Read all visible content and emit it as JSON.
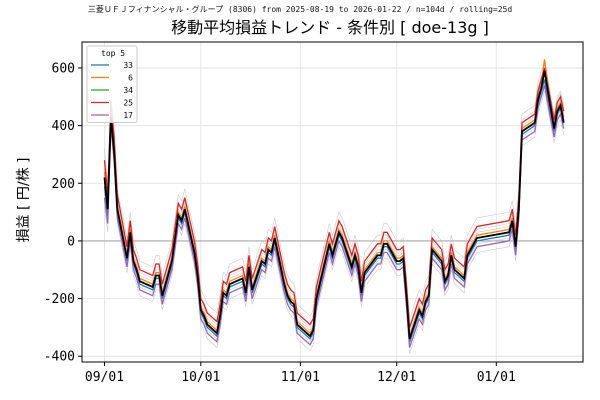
{
  "chart_data": {
    "type": "line",
    "subtitle": "三菱ＵＦＪフィナンシャル・グループ (8306) from 2025-08-19 to 2026-01-22 / n=104d / rolling=25d",
    "title": "移動平均損益トレンド - 条件別 [ doe-13g ]",
    "xlabel": "",
    "ylabel": "損益 [ 円/株 ]",
    "xlim": [
      "2025-08-25",
      "2026-01-28"
    ],
    "ylim": [
      -420,
      690
    ],
    "x_ticks": [
      {
        "date": "2025-09-01",
        "label": "09/01"
      },
      {
        "date": "2025-10-01",
        "label": "10/01"
      },
      {
        "date": "2025-11-01",
        "label": "11/01"
      },
      {
        "date": "2025-12-01",
        "label": "12/01"
      },
      {
        "date": "2026-01-01",
        "label": "01/01"
      }
    ],
    "y_ticks": [
      -400,
      -200,
      0,
      200,
      400,
      600
    ],
    "grid": true,
    "zero_line": true,
    "legend_title": "top 5",
    "legend_position": "upper-left",
    "x": [
      "2025-09-01",
      "2025-09-02",
      "2025-09-03",
      "2025-09-04",
      "2025-09-05",
      "2025-09-08",
      "2025-09-09",
      "2025-09-10",
      "2025-09-11",
      "2025-09-12",
      "2025-09-16",
      "2025-09-17",
      "2025-09-18",
      "2025-09-19",
      "2025-09-22",
      "2025-09-24",
      "2025-09-25",
      "2025-09-26",
      "2025-09-29",
      "2025-09-30",
      "2025-10-01",
      "2025-10-02",
      "2025-10-03",
      "2025-10-06",
      "2025-10-07",
      "2025-10-08",
      "2025-10-09",
      "2025-10-10",
      "2025-10-14",
      "2025-10-15",
      "2025-10-16",
      "2025-10-17",
      "2025-10-20",
      "2025-10-21",
      "2025-10-22",
      "2025-10-23",
      "2025-10-24",
      "2025-10-27",
      "2025-10-28",
      "2025-10-29",
      "2025-10-30",
      "2025-10-31",
      "2025-11-04",
      "2025-11-05",
      "2025-11-06",
      "2025-11-07",
      "2025-11-10",
      "2025-11-11",
      "2025-11-12",
      "2025-11-13",
      "2025-11-14",
      "2025-11-17",
      "2025-11-18",
      "2025-11-19",
      "2025-11-20",
      "2025-11-21",
      "2025-11-25",
      "2025-11-26",
      "2025-11-27",
      "2025-11-28",
      "2025-12-01",
      "2025-12-02",
      "2025-12-03",
      "2025-12-04",
      "2025-12-05",
      "2025-12-08",
      "2025-12-09",
      "2025-12-10",
      "2025-12-11",
      "2025-12-12",
      "2025-12-15",
      "2025-12-16",
      "2025-12-17",
      "2025-12-18",
      "2025-12-19",
      "2025-12-22",
      "2025-12-23",
      "2025-12-24",
      "2025-12-25",
      "2025-12-26",
      "2026-01-05",
      "2026-01-06",
      "2026-01-07",
      "2026-01-08",
      "2026-01-09",
      "2026-01-13",
      "2026-01-14",
      "2026-01-15",
      "2026-01-16",
      "2026-01-19",
      "2026-01-20",
      "2026-01-21",
      "2026-01-22"
    ],
    "series": [
      {
        "name": "33",
        "color": "#1f77b4",
        "values": [
          190,
          80,
          420,
          300,
          100,
          -70,
          20,
          -80,
          -110,
          -150,
          -170,
          -130,
          -130,
          -200,
          -80,
          80,
          60,
          100,
          -50,
          -130,
          -250,
          -270,
          -300,
          -330,
          -270,
          -190,
          -200,
          -160,
          -140,
          -190,
          -100,
          -180,
          -80,
          -90,
          -40,
          -50,
          0,
          -160,
          -200,
          -220,
          -230,
          -300,
          -340,
          -320,
          -210,
          -160,
          -20,
          -60,
          -20,
          20,
          0,
          -100,
          -60,
          -100,
          -190,
          -120,
          -60,
          -60,
          -20,
          -20,
          -80,
          -80,
          -70,
          -200,
          -350,
          -250,
          -270,
          -220,
          -200,
          -40,
          -80,
          -150,
          -130,
          -60,
          -110,
          -140,
          -60,
          -40,
          -20,
          0,
          20,
          60,
          -30,
          100,
          370,
          400,
          480,
          520,
          560,
          380,
          440,
          460,
          410
        ]
      },
      {
        "name": "6",
        "color": "#ff7f0e",
        "values": [
          240,
          120,
          450,
          330,
          120,
          -50,
          40,
          -60,
          -90,
          -130,
          -150,
          -110,
          -110,
          -180,
          -60,
          100,
          80,
          120,
          -30,
          -110,
          -230,
          -250,
          -280,
          -310,
          -250,
          -170,
          -180,
          -140,
          -120,
          -170,
          -80,
          -160,
          -60,
          -70,
          -20,
          -30,
          20,
          -140,
          -180,
          -200,
          -210,
          -280,
          -320,
          -300,
          -190,
          -140,
          0,
          -40,
          0,
          40,
          20,
          -80,
          -40,
          -80,
          -170,
          -100,
          -40,
          -40,
          0,
          0,
          -60,
          -60,
          -50,
          -180,
          -330,
          -230,
          -250,
          -200,
          -180,
          -20,
          -60,
          -130,
          -110,
          -40,
          -90,
          -120,
          -40,
          -20,
          0,
          20,
          40,
          80,
          -10,
          120,
          390,
          420,
          500,
          540,
          630,
          400,
          460,
          480,
          430
        ]
      },
      {
        "name": "34",
        "color": "#2ca02c",
        "values": [
          210,
          100,
          440,
          310,
          110,
          -60,
          30,
          -70,
          -100,
          -140,
          -160,
          -120,
          -120,
          -190,
          -70,
          90,
          70,
          110,
          -40,
          -120,
          -240,
          -260,
          -290,
          -320,
          -260,
          -180,
          -190,
          -150,
          -130,
          -180,
          -90,
          -170,
          -70,
          -80,
          -30,
          -40,
          10,
          -150,
          -190,
          -210,
          -220,
          -290,
          -330,
          -310,
          -200,
          -150,
          -10,
          -50,
          -10,
          30,
          10,
          -90,
          -50,
          -90,
          -180,
          -110,
          -50,
          -50,
          -10,
          -10,
          -70,
          -70,
          -60,
          -190,
          -340,
          -240,
          -260,
          -210,
          -190,
          -30,
          -70,
          -140,
          -120,
          -50,
          -100,
          -130,
          -50,
          -30,
          -10,
          10,
          30,
          70,
          -20,
          110,
          380,
          410,
          490,
          530,
          600,
          390,
          450,
          470,
          420
        ]
      },
      {
        "name": "25",
        "color": "#d62728",
        "values": [
          280,
          160,
          480,
          360,
          160,
          -20,
          70,
          -30,
          -60,
          -100,
          -120,
          -80,
          -80,
          -150,
          -30,
          130,
          110,
          150,
          0,
          -80,
          -200,
          -220,
          -250,
          -280,
          -220,
          -140,
          -150,
          -110,
          -90,
          -140,
          -50,
          -130,
          -30,
          -40,
          10,
          0,
          50,
          -110,
          -150,
          -170,
          -180,
          -250,
          -290,
          -270,
          -160,
          -110,
          30,
          -10,
          30,
          70,
          50,
          -50,
          -10,
          -50,
          -140,
          -70,
          -10,
          -10,
          30,
          30,
          -30,
          -30,
          -20,
          -150,
          -300,
          -200,
          -220,
          -170,
          -150,
          10,
          -30,
          -100,
          -80,
          -10,
          -60,
          -90,
          -10,
          10,
          30,
          50,
          70,
          110,
          20,
          150,
          410,
          440,
          520,
          560,
          600,
          420,
          480,
          500,
          450
        ]
      },
      {
        "name": "17",
        "color": "#9467bd",
        "values": [
          150,
          60,
          400,
          280,
          80,
          -90,
          0,
          -100,
          -130,
          -170,
          -190,
          -150,
          -150,
          -220,
          -100,
          60,
          40,
          80,
          -70,
          -150,
          -270,
          -290,
          -320,
          -350,
          -290,
          -210,
          -220,
          -180,
          -160,
          -210,
          -120,
          -200,
          -100,
          -110,
          -60,
          -70,
          -20,
          -180,
          -220,
          -240,
          -250,
          -320,
          -360,
          -340,
          -230,
          -180,
          -40,
          -80,
          -40,
          0,
          -20,
          -120,
          -80,
          -120,
          -210,
          -140,
          -80,
          -80,
          -40,
          -40,
          -100,
          -100,
          -90,
          -220,
          -370,
          -270,
          -290,
          -240,
          -220,
          -60,
          -100,
          -170,
          -150,
          -80,
          -130,
          -160,
          -80,
          -60,
          -40,
          -20,
          0,
          40,
          -50,
          80,
          350,
          380,
          460,
          500,
          540,
          360,
          420,
          440,
          390
        ]
      }
    ],
    "background_series": [
      {
        "color": "#bbbbbb",
        "values": [
          250,
          140,
          430,
          320,
          140,
          -40,
          50,
          -50,
          -80,
          -120,
          -140,
          -100,
          -100,
          -170,
          -50,
          110,
          90,
          130,
          -20,
          -100,
          -220,
          -240,
          -270,
          -300,
          -240,
          -160,
          -170,
          -130,
          -110,
          -160,
          -70,
          -150,
          -50,
          -60,
          -10,
          -20,
          30,
          -130,
          -170,
          -190,
          -200,
          -270,
          -310,
          -290,
          -180,
          -130,
          10,
          -30,
          10,
          50,
          30,
          -70,
          -30,
          -70,
          -160,
          -90,
          -30,
          -30,
          10,
          10,
          -50,
          -50,
          -40,
          -170,
          -320,
          -220,
          -240,
          -190,
          -170,
          -10,
          -50,
          -120,
          -100,
          -30,
          -80,
          -110,
          -30,
          -10,
          10,
          30,
          50,
          90,
          0,
          130,
          400,
          430,
          510,
          550,
          590,
          410,
          470,
          490,
          440
        ]
      },
      {
        "color": "#bbbbbb",
        "values": [
          320,
          200,
          500,
          400,
          180,
          10,
          100,
          0,
          -30,
          -70,
          -90,
          -50,
          -50,
          -120,
          0,
          160,
          140,
          180,
          30,
          -50,
          -170,
          -190,
          -220,
          -250,
          -190,
          -110,
          -120,
          -80,
          -60,
          -110,
          -20,
          -100,
          0,
          -10,
          40,
          30,
          80,
          -80,
          -120,
          -140,
          -150,
          -220,
          -260,
          -240,
          -130,
          -80,
          60,
          20,
          60,
          100,
          80,
          -20,
          20,
          -20,
          -110,
          -40,
          20,
          20,
          60,
          60,
          0,
          0,
          10,
          -120,
          -270,
          -170,
          -190,
          -140,
          -120,
          40,
          0,
          -70,
          -50,
          20,
          -30,
          -60,
          20,
          40,
          60,
          80,
          100,
          140,
          50,
          180,
          440,
          470,
          550,
          590,
          620,
          440,
          500,
          520,
          470
        ]
      },
      {
        "color": "#bbbbbb",
        "values": [
          120,
          30,
          380,
          260,
          60,
          -110,
          -20,
          -120,
          -150,
          -190,
          -210,
          -170,
          -170,
          -240,
          -120,
          40,
          20,
          60,
          -90,
          -170,
          -290,
          -310,
          -340,
          -370,
          -310,
          -230,
          -240,
          -200,
          -180,
          -230,
          -140,
          -220,
          -120,
          -130,
          -80,
          -90,
          -40,
          -200,
          -240,
          -260,
          -270,
          -340,
          -380,
          -360,
          -250,
          -200,
          -60,
          -100,
          -60,
          -20,
          -40,
          -140,
          -100,
          -140,
          -230,
          -160,
          -100,
          -100,
          -60,
          -60,
          -120,
          -120,
          -110,
          -240,
          -390,
          -290,
          -310,
          -260,
          -240,
          -80,
          -120,
          -190,
          -170,
          -100,
          -150,
          -180,
          -100,
          -80,
          -60,
          -40,
          -20,
          20,
          -70,
          60,
          330,
          360,
          440,
          480,
          520,
          340,
          400,
          420,
          370
        ]
      },
      {
        "color": "#bbbbbb",
        "values": [
          200,
          110,
          410,
          290,
          90,
          -80,
          10,
          -90,
          -120,
          -160,
          -180,
          -140,
          -140,
          -210,
          -90,
          70,
          50,
          90,
          -60,
          -140,
          -260,
          -280,
          -310,
          -340,
          -280,
          -200,
          -210,
          -170,
          -150,
          -200,
          -110,
          -190,
          -90,
          -100,
          -50,
          -60,
          -10,
          -170,
          -210,
          -230,
          -240,
          -310,
          -350,
          -330,
          -220,
          -170,
          -30,
          -70,
          -30,
          10,
          -10,
          -110,
          -70,
          -110,
          -200,
          -130,
          -70,
          -70,
          -30,
          -30,
          -90,
          -90,
          -80,
          -210,
          -360,
          -260,
          -280,
          -230,
          -210,
          -50,
          -90,
          -160,
          -140,
          -70,
          -120,
          -150,
          -70,
          -50,
          -30,
          -10,
          10,
          50,
          -40,
          90,
          360,
          390,
          470,
          510,
          550,
          370,
          430,
          450,
          400
        ]
      },
      {
        "color": "#bbbbbb",
        "values": [
          270,
          180,
          460,
          340,
          150,
          -30,
          60,
          -40,
          -70,
          -110,
          -130,
          -90,
          -90,
          -160,
          -40,
          120,
          100,
          140,
          -10,
          -90,
          -210,
          -230,
          -260,
          -290,
          -230,
          -150,
          -160,
          -120,
          -100,
          -150,
          -60,
          -140,
          -40,
          -50,
          0,
          -10,
          40,
          -120,
          -160,
          -180,
          -190,
          -260,
          -300,
          -280,
          -170,
          -120,
          20,
          -20,
          20,
          60,
          40,
          -60,
          -20,
          -60,
          -150,
          -80,
          -20,
          -20,
          20,
          20,
          -40,
          -40,
          -30,
          -160,
          -310,
          -210,
          -230,
          -180,
          -160,
          0,
          -40,
          -110,
          -90,
          -20,
          -70,
          -100,
          -20,
          0,
          20,
          40,
          60,
          100,
          10,
          140,
          420,
          450,
          530,
          570,
          580,
          430,
          490,
          510,
          460
        ]
      }
    ],
    "mean_series": {
      "color": "#000000",
      "values": [
        220,
        110,
        430,
        310,
        110,
        -60,
        30,
        -70,
        -100,
        -140,
        -160,
        -120,
        -120,
        -190,
        -70,
        90,
        70,
        110,
        -40,
        -120,
        -240,
        -260,
        -290,
        -320,
        -260,
        -180,
        -190,
        -150,
        -130,
        -180,
        -90,
        -170,
        -70,
        -80,
        -30,
        -40,
        10,
        -150,
        -190,
        -210,
        -220,
        -290,
        -330,
        -310,
        -200,
        -150,
        -10,
        -50,
        -10,
        30,
        10,
        -90,
        -50,
        -90,
        -180,
        -110,
        -50,
        -50,
        -10,
        -10,
        -70,
        -70,
        -60,
        -190,
        -340,
        -240,
        -260,
        -210,
        -190,
        -30,
        -70,
        -140,
        -120,
        -50,
        -100,
        -130,
        -50,
        -30,
        -10,
        10,
        30,
        70,
        -20,
        110,
        380,
        410,
        490,
        530,
        590,
        390,
        450,
        470,
        410
      ]
    }
  }
}
